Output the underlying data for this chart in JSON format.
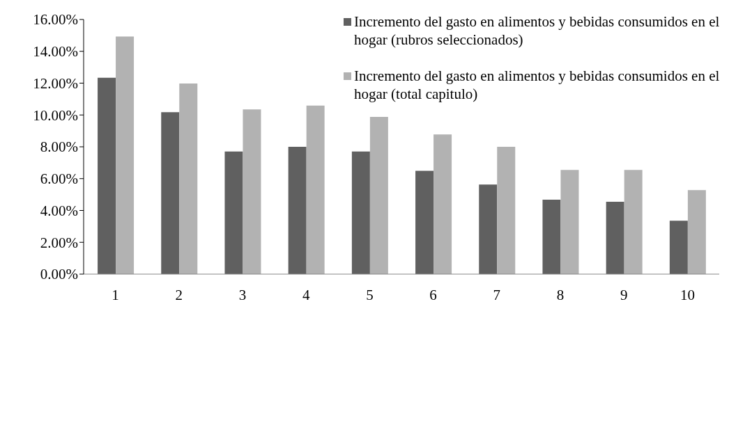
{
  "chart_data": {
    "type": "bar",
    "categories": [
      "1",
      "2",
      "3",
      "4",
      "5",
      "6",
      "7",
      "8",
      "9",
      "10"
    ],
    "series": [
      {
        "name": "Incremento del gasto en alimentos  y bebidas consumidos en el hogar (rubros seleccionados)",
        "color": "#606060",
        "values": [
          12.34,
          10.18,
          7.7,
          8.0,
          7.7,
          6.49,
          5.63,
          4.68,
          4.55,
          3.36
        ]
      },
      {
        "name": "Incremento del gasto en alimentos  y bebidas consumidos en el hogar (total capitulo)",
        "color": "#b2b2b2",
        "values": [
          14.93,
          11.98,
          10.35,
          10.59,
          9.88,
          8.78,
          8.0,
          6.55,
          6.55,
          5.28
        ]
      }
    ],
    "ylim": [
      0,
      16
    ],
    "yticks": [
      {
        "value": 0,
        "label": "0.00%"
      },
      {
        "value": 2,
        "label": "2.00%"
      },
      {
        "value": 4,
        "label": "4.00%"
      },
      {
        "value": 6,
        "label": "6.00%"
      },
      {
        "value": 8,
        "label": "8.00%"
      },
      {
        "value": 10,
        "label": "10.00%"
      },
      {
        "value": 12,
        "label": "12.00%"
      },
      {
        "value": 14,
        "label": "14.00%"
      },
      {
        "value": 16,
        "label": "16.00%"
      }
    ],
    "grid": false,
    "legend": "top right"
  }
}
